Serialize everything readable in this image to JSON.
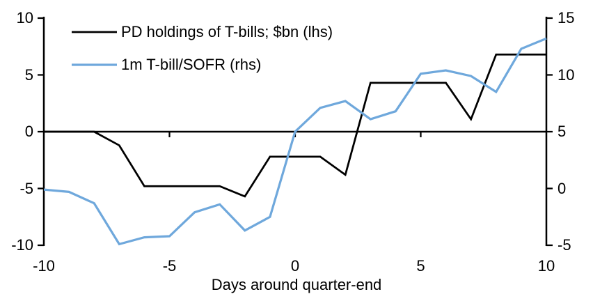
{
  "chart_data": {
    "type": "line",
    "title": "",
    "xlabel": "Days around quarter-end",
    "x": [
      -10,
      -9,
      -8,
      -7,
      -6,
      -5,
      -4,
      -3,
      -2,
      -1,
      0,
      1,
      2,
      3,
      4,
      5,
      6,
      7,
      8,
      9,
      10
    ],
    "x_range": [
      -10,
      10
    ],
    "x_ticks": [
      -10,
      -5,
      0,
      5,
      10
    ],
    "left_axis": {
      "range": [
        -10,
        10
      ],
      "ticks": [
        10,
        5,
        0,
        -5,
        -10
      ]
    },
    "right_axis": {
      "range": [
        -5,
        15
      ],
      "ticks": [
        15,
        10,
        5,
        0,
        -5
      ]
    },
    "grid": false,
    "legend_position": "top-left",
    "series": [
      {
        "name": "PD holdings of T-bills; $bn (lhs)",
        "axis": "left",
        "color": "#000000",
        "values": [
          0,
          0,
          0,
          -1.2,
          -4.8,
          -4.8,
          -4.8,
          -4.8,
          -5.7,
          -2.2,
          -2.2,
          -2.2,
          -3.8,
          4.3,
          4.3,
          4.3,
          4.3,
          1.1,
          6.8,
          6.8,
          6.8
        ]
      },
      {
        "name": "1m T-bill/SOFR (rhs)",
        "axis": "right",
        "color": "#6fa8dc",
        "values": [
          -0.1,
          -0.3,
          -1.3,
          -4.9,
          -4.3,
          -4.2,
          -2.1,
          -1.4,
          -3.7,
          -2.5,
          5.0,
          7.1,
          7.7,
          6.1,
          6.8,
          10.1,
          10.4,
          9.9,
          8.5,
          12.3,
          13.2
        ]
      }
    ],
    "axis_color": "#000000"
  }
}
